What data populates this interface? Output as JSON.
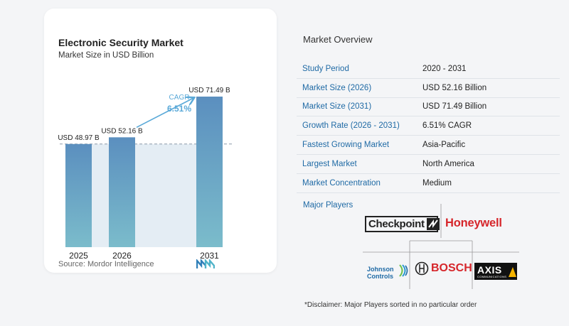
{
  "chart": {
    "title": "Electronic Security Market",
    "subtitle": "Market Size in USD Billion",
    "source": "Source:  Mordor Intelligence",
    "cagr_label": "CAGR",
    "cagr_value": "6.51%",
    "colors": {
      "bar_top": "#5b93c0",
      "bar_bottom": "#7ab9c9",
      "band": "#dde8f1",
      "accent": "#5aa9d8"
    }
  },
  "chart_data": {
    "type": "bar",
    "categories": [
      "2025",
      "2026",
      "2031"
    ],
    "values": [
      48.97,
      52.16,
      71.49
    ],
    "data_labels": [
      "USD 48.97 B",
      "USD 52.16 B",
      "USD 71.49 B"
    ],
    "title": "Electronic Security Market",
    "subtitle": "Market Size in USD Billion",
    "xlabel": "",
    "ylabel": "",
    "ylim": [
      0,
      75
    ],
    "grid": false,
    "reference_line": 48.97
  },
  "overview": {
    "title": "Market Overview",
    "rows": [
      {
        "label": "Study Period",
        "value": "2020 - 2031"
      },
      {
        "label": "Market Size (2026)",
        "value": "USD 52.16 Billion"
      },
      {
        "label": "Market Size (2031)",
        "value": "USD 71.49 Billion"
      },
      {
        "label": "Growth Rate (2026 - 2031)",
        "value": "6.51% CAGR"
      },
      {
        "label": "Fastest Growing Market",
        "value": "Asia-Pacific"
      },
      {
        "label": "Largest Market",
        "value": "North America"
      },
      {
        "label": "Market Concentration",
        "value": "Medium"
      }
    ],
    "players_title": "Major Players",
    "players": {
      "checkpoint": "Checkpoint",
      "honeywell": "Honeywell",
      "johnson_1": "Johnson",
      "johnson_2": "Controls",
      "bosch": "BOSCH",
      "axis": "AXIS",
      "axis_sub": "COMMUNICATIONS"
    },
    "disclaimer": "*Disclaimer: Major Players sorted in no particular order"
  }
}
